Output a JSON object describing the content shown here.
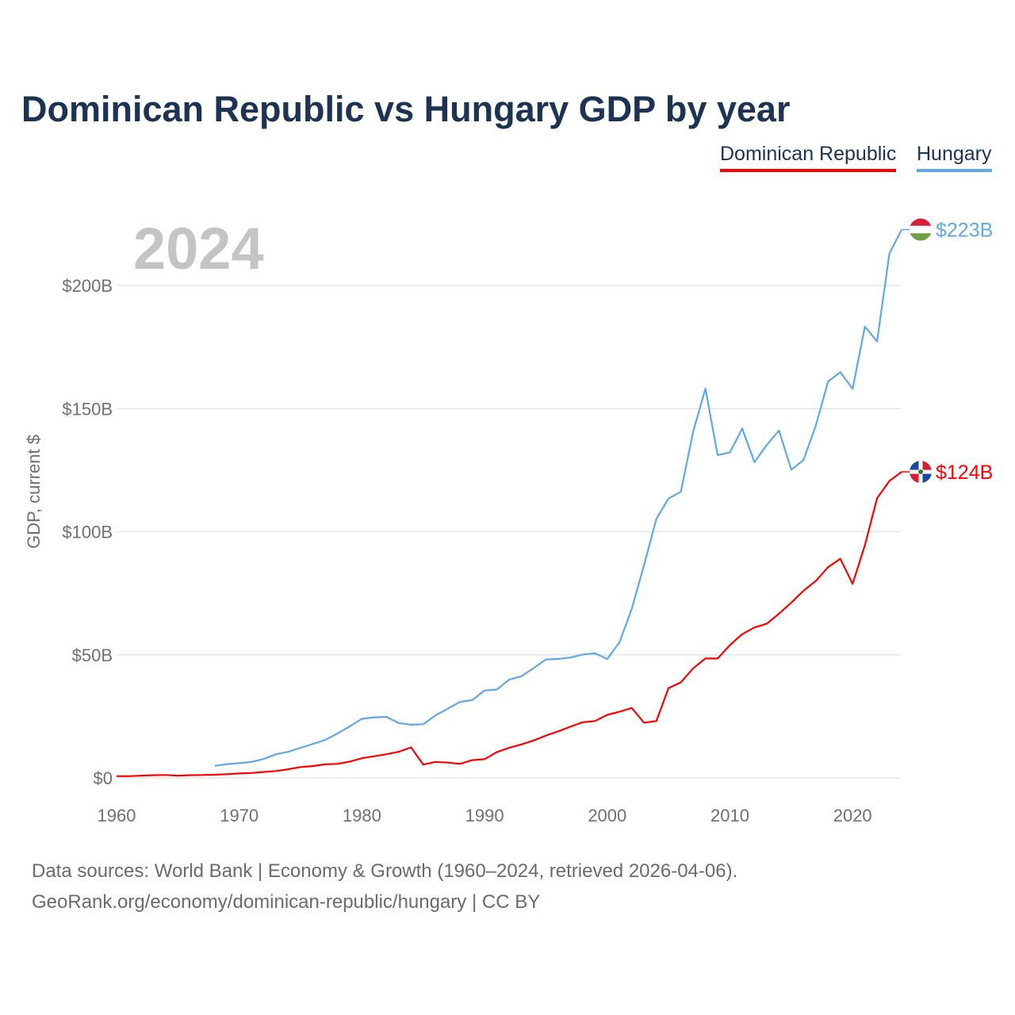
{
  "chart_data": {
    "type": "line",
    "title": "Dominican Republic vs Hungary GDP by year",
    "year_label": "2024",
    "xlabel": "",
    "ylabel": "GDP, current $",
    "xlim": [
      1960,
      2024
    ],
    "ylim": [
      0,
      230
    ],
    "x_ticks": [
      1960,
      1970,
      1980,
      1990,
      2000,
      2010,
      2020
    ],
    "y_ticks": [
      {
        "value": 0,
        "label": "$0"
      },
      {
        "value": 50,
        "label": "$50B"
      },
      {
        "value": 100,
        "label": "$100B"
      },
      {
        "value": 150,
        "label": "$150B"
      },
      {
        "value": 200,
        "label": "$200B"
      }
    ],
    "grid": true,
    "legend_position": "top-right",
    "series": [
      {
        "name": "Dominican Republic",
        "color": "#ff0000",
        "flag": "dominican-republic-flag",
        "end_label": "$124B",
        "start_year": 1960,
        "values": [
          0.7,
          0.7,
          0.9,
          1.1,
          1.2,
          0.9,
          1.1,
          1.2,
          1.3,
          1.5,
          1.8,
          2.0,
          2.4,
          2.8,
          3.5,
          4.4,
          4.8,
          5.5,
          5.7,
          6.6,
          8.0,
          8.8,
          9.6,
          10.6,
          12.4,
          5.4,
          6.5,
          6.2,
          5.7,
          7.2,
          7.6,
          10.5,
          12.2,
          13.6,
          15.2,
          17.2,
          18.9,
          20.8,
          22.6,
          23.1,
          25.6,
          26.9,
          28.4,
          22.4,
          23.1,
          36.5,
          38.8,
          44.5,
          48.5,
          48.5,
          53.9,
          58.4,
          61.1,
          62.6,
          66.7,
          71.2,
          76.0,
          80.0,
          85.6,
          89.0,
          78.8,
          94.5,
          113.6,
          120.6,
          124.3
        ]
      },
      {
        "name": "Hungary",
        "color": "#5fa8ea",
        "flag": "hungary-flag",
        "end_label": "$223B",
        "start_year": 1968,
        "values": [
          4.9,
          5.6,
          6.0,
          6.5,
          7.7,
          9.6,
          10.6,
          12.2,
          13.8,
          15.4,
          18.0,
          20.9,
          24.0,
          24.6,
          24.8,
          22.3,
          21.6,
          21.8,
          25.4,
          28.1,
          30.9,
          31.6,
          35.5,
          35.9,
          39.9,
          41.3,
          44.6,
          48.1,
          48.3,
          48.9,
          50.1,
          50.6,
          48.3,
          55.1,
          68.7,
          86.4,
          105.2,
          113.5,
          116.2,
          140.6,
          158.1,
          131.1,
          132.2,
          141.9,
          128.2,
          135.2,
          141.1,
          125.2,
          129.1,
          143.1,
          161.0,
          164.8,
          158.0,
          183.3,
          177.3,
          213.0,
          222.7
        ]
      }
    ]
  },
  "footer": {
    "line1": "Data sources: World Bank | Economy & Growth (1960–2024, retrieved 2026-04-06).",
    "line2": "GeoRank.org/economy/dominican-republic/hungary | CC BY"
  }
}
